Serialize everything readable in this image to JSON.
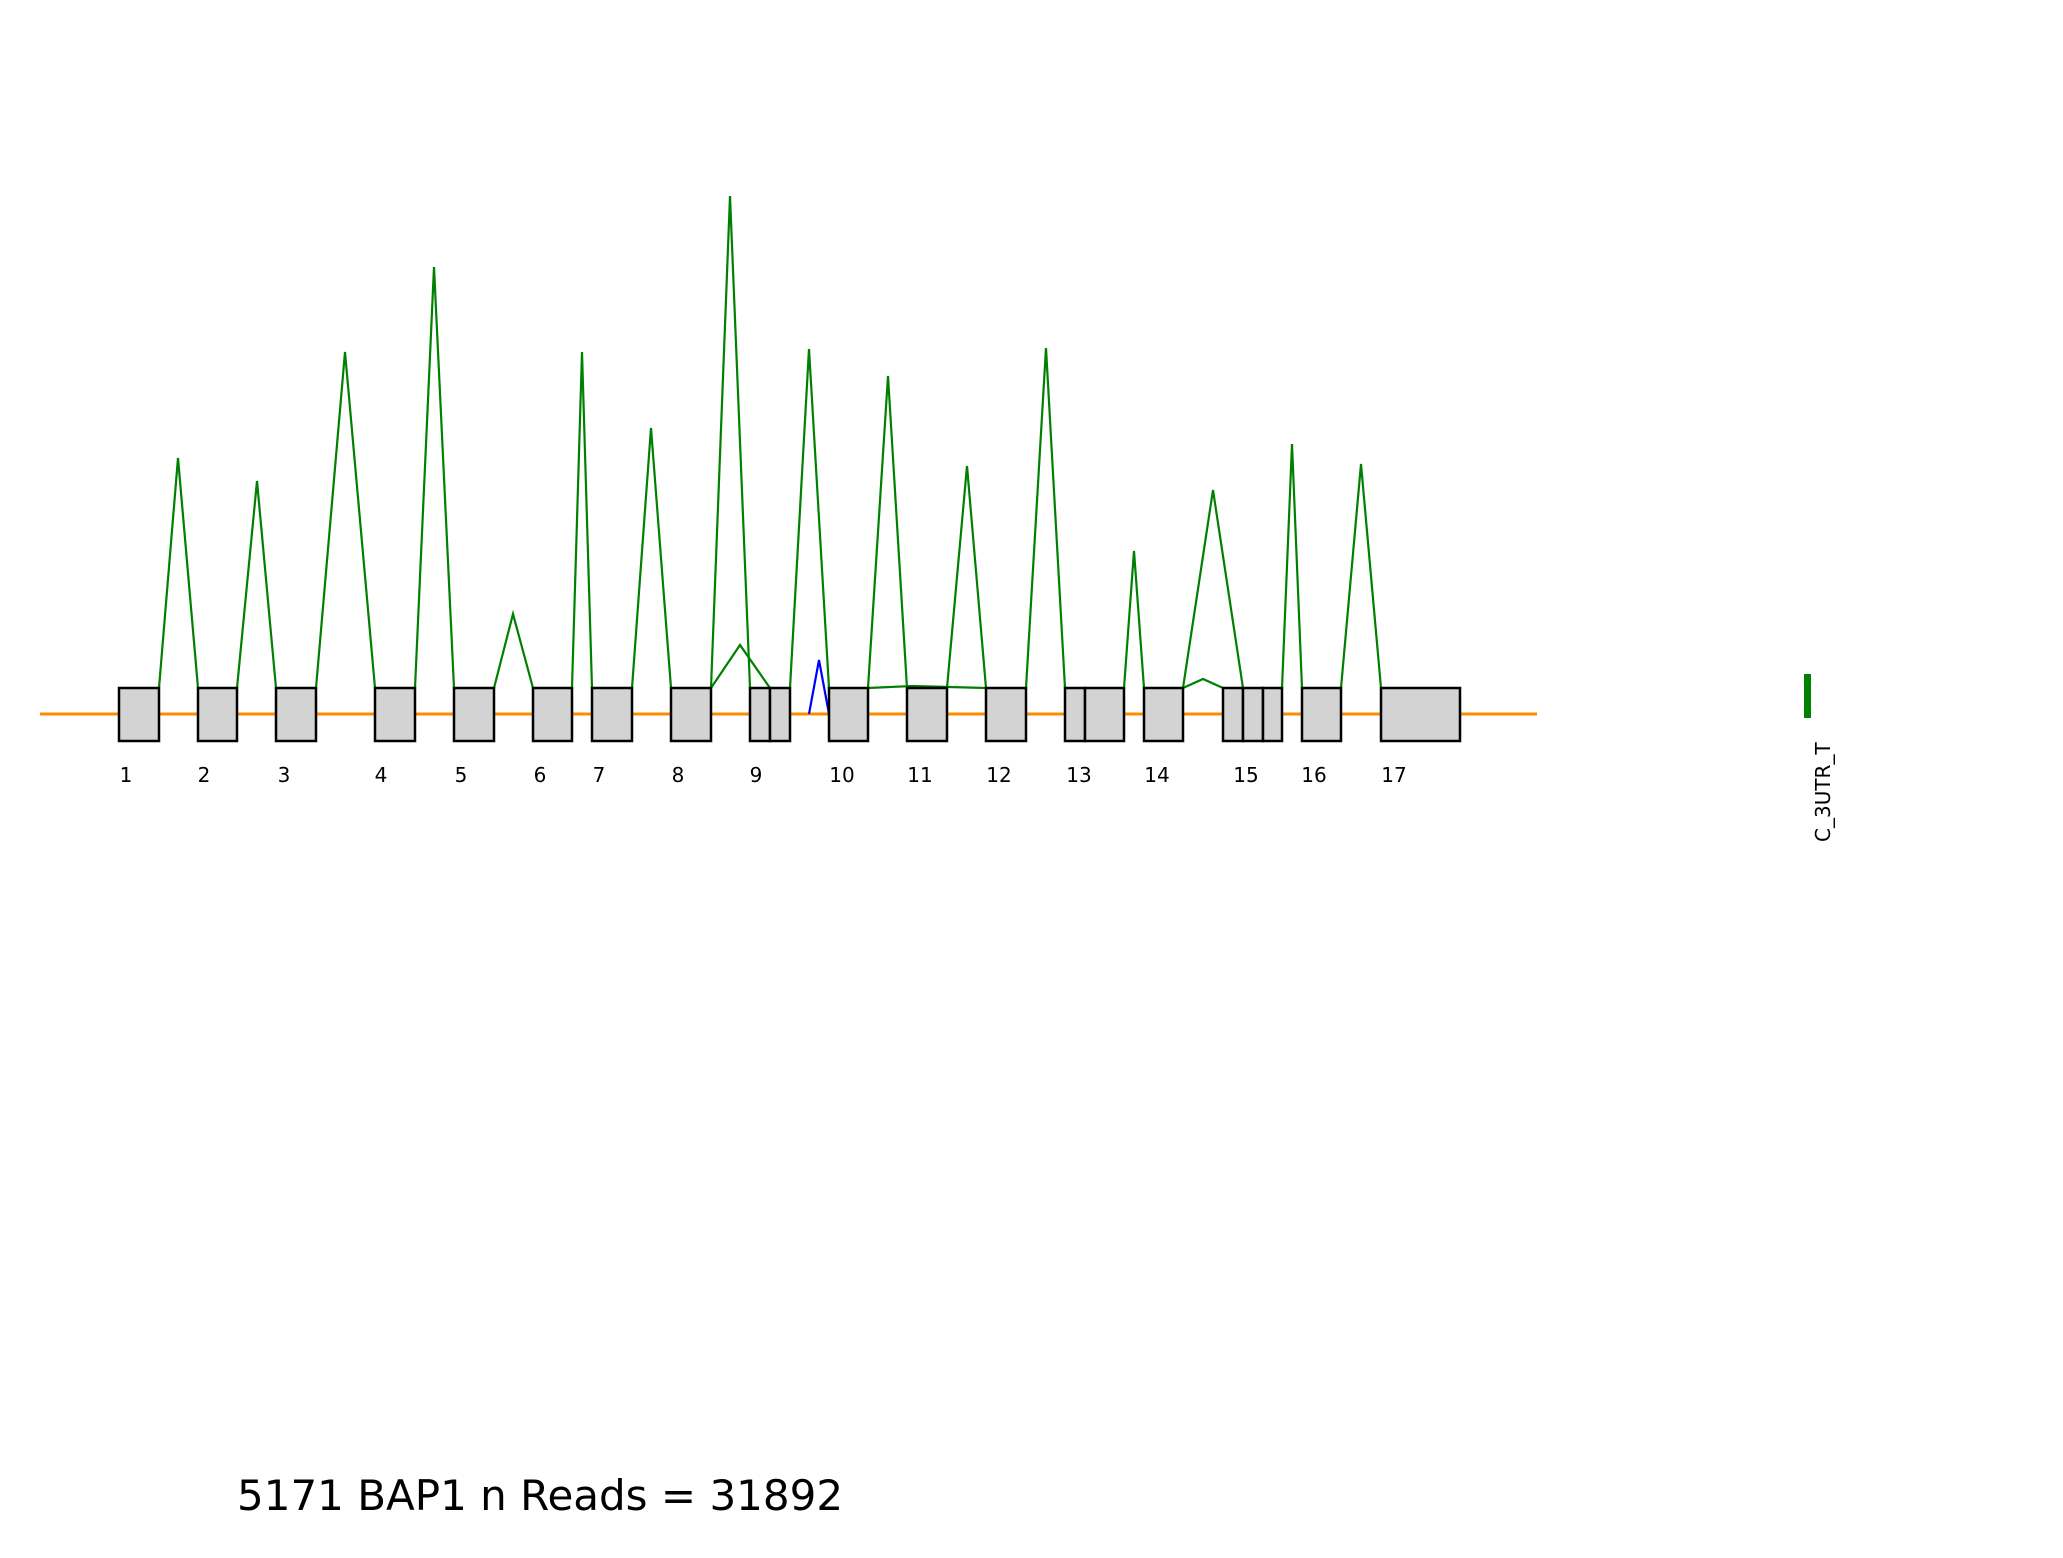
{
  "diagram": {
    "colors": {
      "backbone": "#ff8c00",
      "exon_fill": "#d3d3d3",
      "exon_stroke": "#000000",
      "junction": "#008000",
      "junction_alt": "#0000ff",
      "marker": "#008000"
    },
    "exon_labels": [
      "1",
      "2",
      "3",
      "4",
      "5",
      "6",
      "7",
      "8",
      "9",
      "10",
      "11",
      "12",
      "13",
      "14",
      "15",
      "16",
      "17"
    ],
    "marker_label": "C_3UTR_T",
    "caption": "5171 BAP1 n Reads = 31892"
  }
}
